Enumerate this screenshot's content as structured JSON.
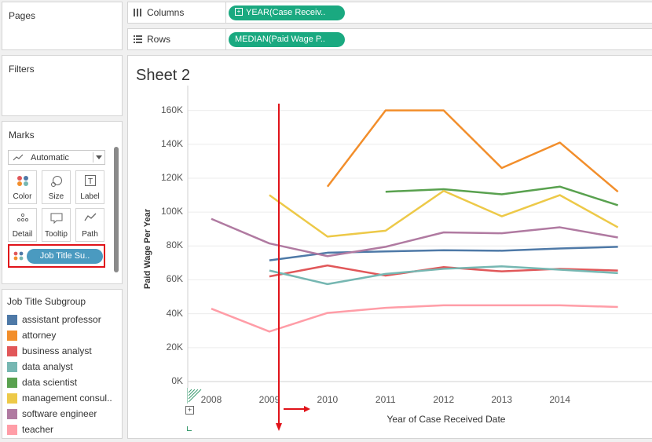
{
  "pages_panel": {
    "title": "Pages"
  },
  "filters_panel": {
    "title": "Filters"
  },
  "marks_panel": {
    "title": "Marks",
    "mark_type": "Automatic",
    "buttons": [
      {
        "label": "Color",
        "icon": "color-dots-icon"
      },
      {
        "label": "Size",
        "icon": "size-icon"
      },
      {
        "label": "Label",
        "icon": "label-icon"
      },
      {
        "label": "Detail",
        "icon": "detail-icon"
      },
      {
        "label": "Tooltip",
        "icon": "tooltip-icon"
      },
      {
        "label": "Path",
        "icon": "path-icon"
      }
    ],
    "color_pill": "Job Title Su.."
  },
  "shelves": {
    "columns_label": "Columns",
    "columns_pill": "YEAR(Case Receiv..",
    "rows_label": "Rows",
    "rows_pill": "MEDIAN(Paid Wage P.."
  },
  "sheet": {
    "title": "Sheet 2"
  },
  "legend": {
    "title": "Job Title Subgroup",
    "items": [
      {
        "label": "assistant professor",
        "color": "#4e79a7"
      },
      {
        "label": "attorney",
        "color": "#f28e2b"
      },
      {
        "label": "business analyst",
        "color": "#e15759"
      },
      {
        "label": "data analyst",
        "color": "#76b7b2"
      },
      {
        "label": "data scientist",
        "color": "#59a14f"
      },
      {
        "label": "management consul..",
        "color": "#edc948"
      },
      {
        "label": "software engineer",
        "color": "#b07aa1"
      },
      {
        "label": "teacher",
        "color": "#ff9da7"
      }
    ]
  },
  "chart_data": {
    "type": "line",
    "xlabel": "Year of Case Received Date",
    "ylabel": "Paid Wage Per Year",
    "x_ticks": [
      "2008",
      "2009",
      "2010",
      "2011",
      "2012",
      "2013",
      "2014"
    ],
    "y_ticks": [
      "0K",
      "20K",
      "40K",
      "60K",
      "80K",
      "100K",
      "120K",
      "140K",
      "160K"
    ],
    "ylim": [
      0,
      170000
    ],
    "series": [
      {
        "name": "assistant professor",
        "color": "#4e79a7",
        "x": [
          2009,
          2010,
          2011,
          2012,
          2013,
          2014,
          2015
        ],
        "values": [
          71500,
          76000,
          76800,
          77500,
          77200,
          78500,
          79500
        ]
      },
      {
        "name": "attorney",
        "color": "#f28e2b",
        "x": [
          2010,
          2011,
          2012,
          2013,
          2014,
          2015
        ],
        "values": [
          115000,
          160000,
          160000,
          126000,
          141000,
          112000
        ]
      },
      {
        "name": "business analyst",
        "color": "#e15759",
        "x": [
          2009,
          2010,
          2011,
          2012,
          2013,
          2014,
          2015
        ],
        "values": [
          62000,
          68500,
          62500,
          67500,
          65000,
          66500,
          65500
        ]
      },
      {
        "name": "data analyst",
        "color": "#76b7b2",
        "x": [
          2009,
          2010,
          2011,
          2012,
          2013,
          2014,
          2015
        ],
        "values": [
          65500,
          57500,
          63500,
          66500,
          68000,
          66000,
          64000
        ]
      },
      {
        "name": "data scientist",
        "color": "#59a14f",
        "x": [
          2011,
          2012,
          2013,
          2014,
          2015
        ],
        "values": [
          112000,
          113500,
          110500,
          115000,
          104000
        ]
      },
      {
        "name": "management consul..",
        "color": "#edc948",
        "x": [
          2009,
          2010,
          2011,
          2012,
          2013,
          2014,
          2015
        ],
        "values": [
          110000,
          85500,
          89000,
          112500,
          97500,
          110000,
          91000
        ]
      },
      {
        "name": "software engineer",
        "color": "#b07aa1",
        "x": [
          2008,
          2009,
          2010,
          2011,
          2012,
          2013,
          2014,
          2015
        ],
        "values": [
          96000,
          81500,
          74000,
          79500,
          88000,
          87500,
          91000,
          85000
        ]
      },
      {
        "name": "teacher",
        "color": "#ff9da7",
        "x": [
          2008,
          2009,
          2010,
          2011,
          2012,
          2013,
          2014,
          2015
        ],
        "values": [
          43000,
          29500,
          40500,
          43500,
          45000,
          45000,
          45000,
          44000
        ]
      }
    ]
  }
}
